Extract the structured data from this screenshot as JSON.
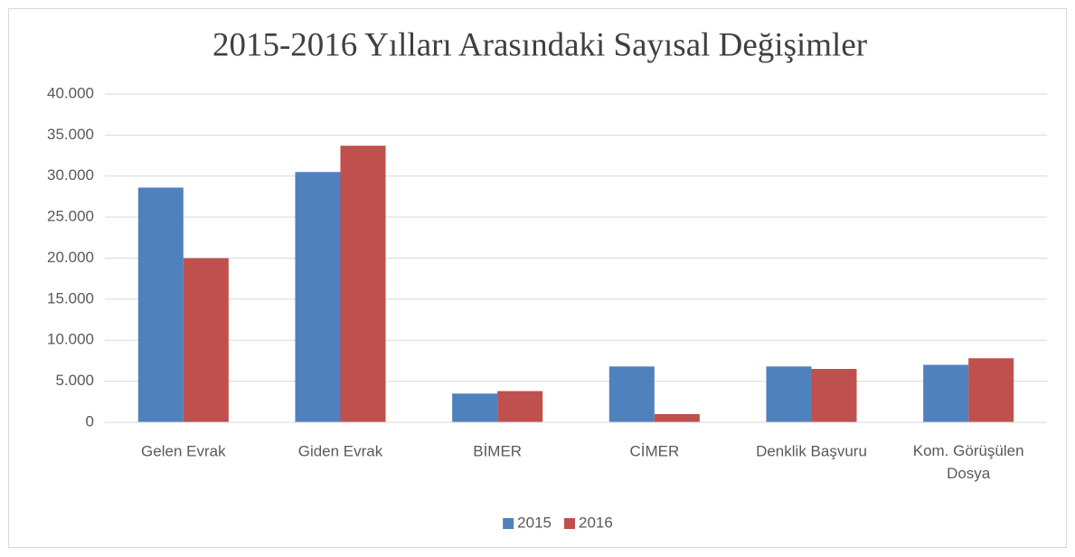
{
  "chart_data": {
    "type": "bar",
    "title": "2015-2016 Yılları Arasındaki Sayısal Değişimler",
    "categories": [
      "Gelen Evrak",
      "Giden Evrak",
      "BİMER",
      "CİMER",
      "Denklik Başvuru",
      "Kom. Görüşülen Dosya"
    ],
    "series": [
      {
        "name": "2015",
        "color": "#4f81bd",
        "values": [
          28600,
          30500,
          3500,
          6800,
          6800,
          7000
        ]
      },
      {
        "name": "2016",
        "color": "#c0504d",
        "values": [
          20000,
          33700,
          3800,
          1000,
          6500,
          7800
        ]
      }
    ],
    "ylim": [
      0,
      40000
    ],
    "yticks": [
      0,
      {
        "value": 5000,
        "label": "5.000"
      },
      {
        "value": 10000,
        "label": "10.000"
      },
      {
        "value": 15000,
        "label": "15.000"
      },
      {
        "value": 20000,
        "label": "20.000"
      },
      {
        "value": 25000,
        "label": "25.000"
      },
      {
        "value": 30000,
        "label": "30.000"
      },
      {
        "value": 35000,
        "label": "35.000"
      },
      {
        "value": 40000,
        "label": "40.000"
      }
    ],
    "grid": true,
    "legend": "bottom"
  }
}
